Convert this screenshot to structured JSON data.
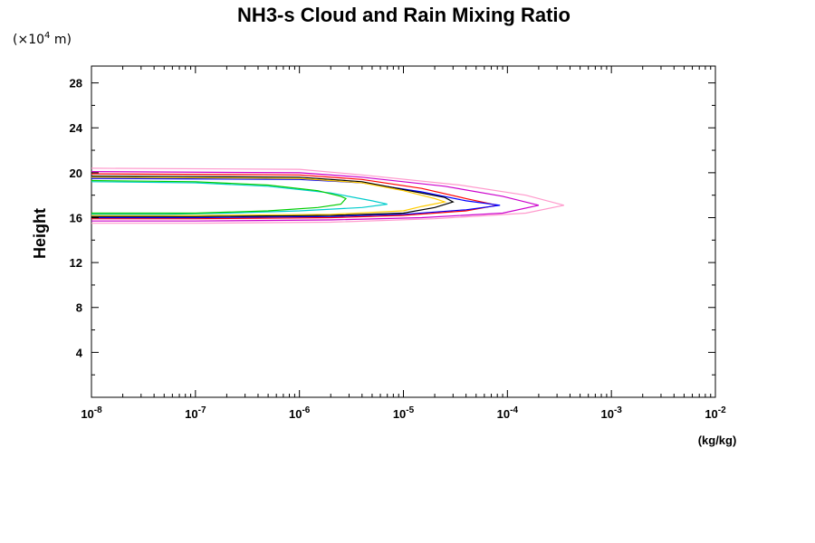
{
  "chart_data": {
    "type": "line",
    "title": "NH3-s Cloud and Rain Mixing Ratio",
    "ylabel": "Height",
    "yunit_prefix": "(×10",
    "yunit_exp": "4",
    "yunit_suffix": " m)",
    "xlabel": "(kg/kg)",
    "xscale": "log",
    "xlim": [
      1e-08,
      0.01
    ],
    "ylim": [
      0,
      29.5
    ],
    "ylim_units": "×10^4 m",
    "x_tick_labels": [
      {
        "base": "10",
        "exp": "-8"
      },
      {
        "base": "10",
        "exp": "-7"
      },
      {
        "base": "10",
        "exp": "-6"
      },
      {
        "base": "10",
        "exp": "-5"
      },
      {
        "base": "10",
        "exp": "-4"
      },
      {
        "base": "10",
        "exp": "-3"
      },
      {
        "base": "10",
        "exp": "-2"
      }
    ],
    "y_ticks": [
      4,
      8,
      12,
      16,
      20,
      24,
      28
    ],
    "grid": false,
    "legend": "none",
    "series": [
      {
        "color": "#ff99cc",
        "x": [
          1e-08,
          1e-06,
          4e-06,
          3.5e-05,
          0.00015,
          0.00035,
          0.00015,
          2e-05,
          2e-06,
          1e-07,
          1e-08
        ],
        "y": [
          20.4,
          20.3,
          19.8,
          18.9,
          18.0,
          17.1,
          16.4,
          15.9,
          15.6,
          15.5,
          15.5
        ]
      },
      {
        "color": "#cc00cc",
        "x": [
          1e-08,
          1e-06,
          4e-06,
          2.5e-05,
          9e-05,
          0.0002,
          9e-05,
          1.5e-05,
          2e-06,
          1e-07,
          1e-08
        ],
        "y": [
          20.1,
          20.0,
          19.6,
          18.8,
          17.9,
          17.1,
          16.4,
          16.0,
          15.8,
          15.7,
          15.7
        ]
      },
      {
        "color": "#ff0000",
        "x": [
          1e-08,
          1e-06,
          4e-06,
          1.5e-05,
          4e-05,
          8e-05,
          4e-05,
          1e-05,
          2e-06,
          1e-07,
          1e-08
        ],
        "y": [
          19.9,
          19.8,
          19.4,
          18.6,
          17.7,
          17.1,
          16.6,
          16.2,
          16.0,
          15.9,
          15.9
        ]
      },
      {
        "color": "#0000ff",
        "x": [
          1e-08,
          1e-06,
          4e-06,
          1.5e-05,
          4e-05,
          8.5e-05,
          4e-05,
          1e-05,
          2e-06,
          1e-07,
          1e-08
        ],
        "y": [
          19.5,
          19.4,
          19.1,
          18.3,
          17.5,
          17.1,
          16.7,
          16.3,
          16.1,
          16.0,
          16.0
        ]
      },
      {
        "color": "#000000",
        "x": [
          1e-08,
          1e-06,
          4e-06,
          1e-05,
          2.5e-05,
          3e-05,
          2e-05,
          1e-05,
          2e-06,
          1e-07,
          1e-08
        ],
        "y": [
          19.7,
          19.6,
          19.2,
          18.5,
          17.8,
          17.4,
          16.9,
          16.4,
          16.2,
          16.1,
          16.1
        ]
      },
      {
        "color": "#ffcc00",
        "x": [
          1e-08,
          1e-06,
          4e-06,
          1e-05,
          2e-05,
          2.5e-05,
          1.5e-05,
          1e-05,
          2e-06,
          1e-07,
          1e-08
        ],
        "y": [
          19.6,
          19.5,
          19.1,
          18.4,
          17.7,
          17.4,
          17.0,
          16.6,
          16.3,
          16.2,
          16.2
        ]
      },
      {
        "color": "#00cccc",
        "x": [
          1e-08,
          1e-07,
          5e-07,
          2e-06,
          5e-06,
          7e-06,
          4e-06,
          1e-06,
          2e-07,
          5e-08,
          1e-08
        ],
        "y": [
          19.2,
          19.1,
          18.8,
          18.2,
          17.5,
          17.2,
          16.9,
          16.6,
          16.4,
          16.3,
          16.3
        ]
      },
      {
        "color": "#00cc00",
        "x": [
          1e-08,
          1e-07,
          5e-07,
          1.5e-06,
          2.5e-06,
          2.8e-06,
          2.5e-06,
          1.5e-06,
          5e-07,
          1e-07,
          1e-08
        ],
        "y": [
          19.3,
          19.2,
          18.9,
          18.4,
          17.9,
          17.7,
          17.2,
          16.9,
          16.6,
          16.4,
          16.4
        ]
      }
    ]
  }
}
